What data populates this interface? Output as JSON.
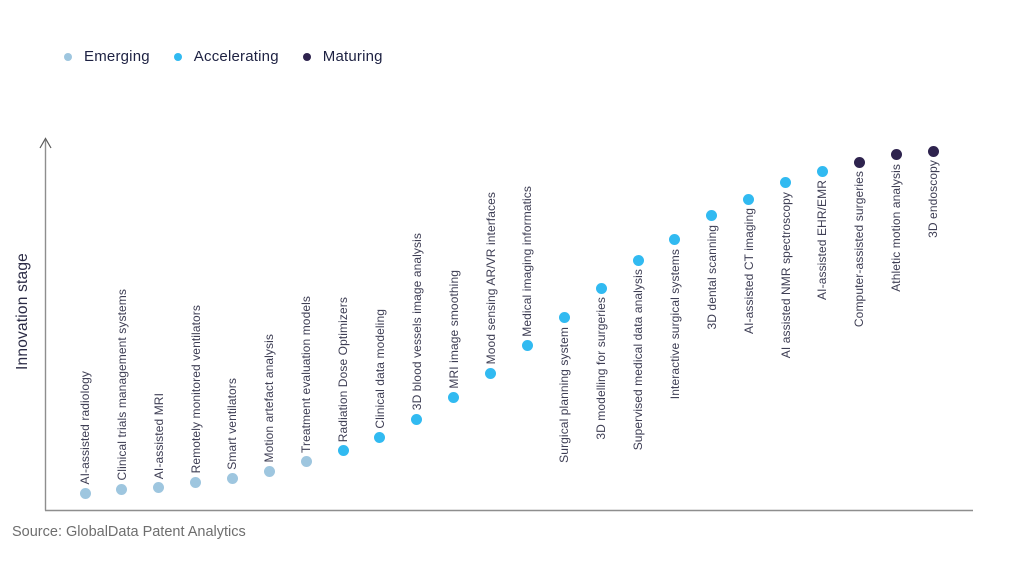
{
  "legend": {
    "items": [
      {
        "label": "Emerging",
        "color": "#9EC6DF"
      },
      {
        "label": "Accelerating",
        "color": "#31BAF1"
      },
      {
        "label": "Maturing",
        "color": "#2E234E"
      }
    ]
  },
  "y_axis": {
    "label": "Innovation stage"
  },
  "source": {
    "text": "Source: GlobalData Patent Analytics"
  },
  "chart_data": {
    "type": "scatter",
    "title": "",
    "xlabel": "",
    "ylabel": "Innovation stage",
    "grid": false,
    "legend_position": "top-left",
    "y_axis_numeric": false,
    "stages": [
      "Emerging",
      "Accelerating",
      "Maturing"
    ],
    "stage_colors": {
      "Emerging": "#9EC6DF",
      "Accelerating": "#31BAF1",
      "Maturing": "#2E234E"
    },
    "level_scale": "relative innovation stage, 0-100, estimated from dot heights",
    "points": [
      {
        "label": "AI-assisted radiology",
        "stage": "Emerging",
        "level": 4.5
      },
      {
        "label": "Clinical trials management systems",
        "stage": "Emerging",
        "level": 5.5
      },
      {
        "label": "AI-assisted MRI",
        "stage": "Emerging",
        "level": 6
      },
      {
        "label": "Remotely monitored ventilators",
        "stage": "Emerging",
        "level": 7.5
      },
      {
        "label": "Smart ventilators",
        "stage": "Emerging",
        "level": 8.5
      },
      {
        "label": "Motion artefact analysis",
        "stage": "Emerging",
        "level": 10.5
      },
      {
        "label": "Treatment evaluation models",
        "stage": "Emerging",
        "level": 13
      },
      {
        "label": "Radiation Dose Optimizers",
        "stage": "Accelerating",
        "level": 16
      },
      {
        "label": "Clinical data modeling",
        "stage": "Accelerating",
        "level": 19.5
      },
      {
        "label": "3D blood vessels image analysis",
        "stage": "Accelerating",
        "level": 24.5
      },
      {
        "label": "MRI image smoothing",
        "stage": "Accelerating",
        "level": 30.5
      },
      {
        "label": "Mood sensing AR/VR interfaces",
        "stage": "Accelerating",
        "level": 37
      },
      {
        "label": "Medical imaging informatics",
        "stage": "Accelerating",
        "level": 44.5
      },
      {
        "label": "Surgical planning system",
        "stage": "Accelerating",
        "level": 52
      },
      {
        "label": "3D modelling for surgeries",
        "stage": "Accelerating",
        "level": 60
      },
      {
        "label": "Supervised medical data analysis",
        "stage": "Accelerating",
        "level": 67.5
      },
      {
        "label": "Interactive surgical systems",
        "stage": "Accelerating",
        "level": 73
      },
      {
        "label": "3D dental scanning",
        "stage": "Accelerating",
        "level": 79.5
      },
      {
        "label": "AI-assisted CT imaging",
        "stage": "Accelerating",
        "level": 84
      },
      {
        "label": "AI assisted NMR spectroscopy",
        "stage": "Accelerating",
        "level": 88.5
      },
      {
        "label": "AI-assisted EHR/EMR",
        "stage": "Accelerating",
        "level": 91.5
      },
      {
        "label": "Computer-assisted surgeries",
        "stage": "Maturing",
        "level": 94
      },
      {
        "label": "Athletic motion analysis",
        "stage": "Maturing",
        "level": 96
      },
      {
        "label": "3D endoscopy",
        "stage": "Maturing",
        "level": 97
      }
    ]
  }
}
